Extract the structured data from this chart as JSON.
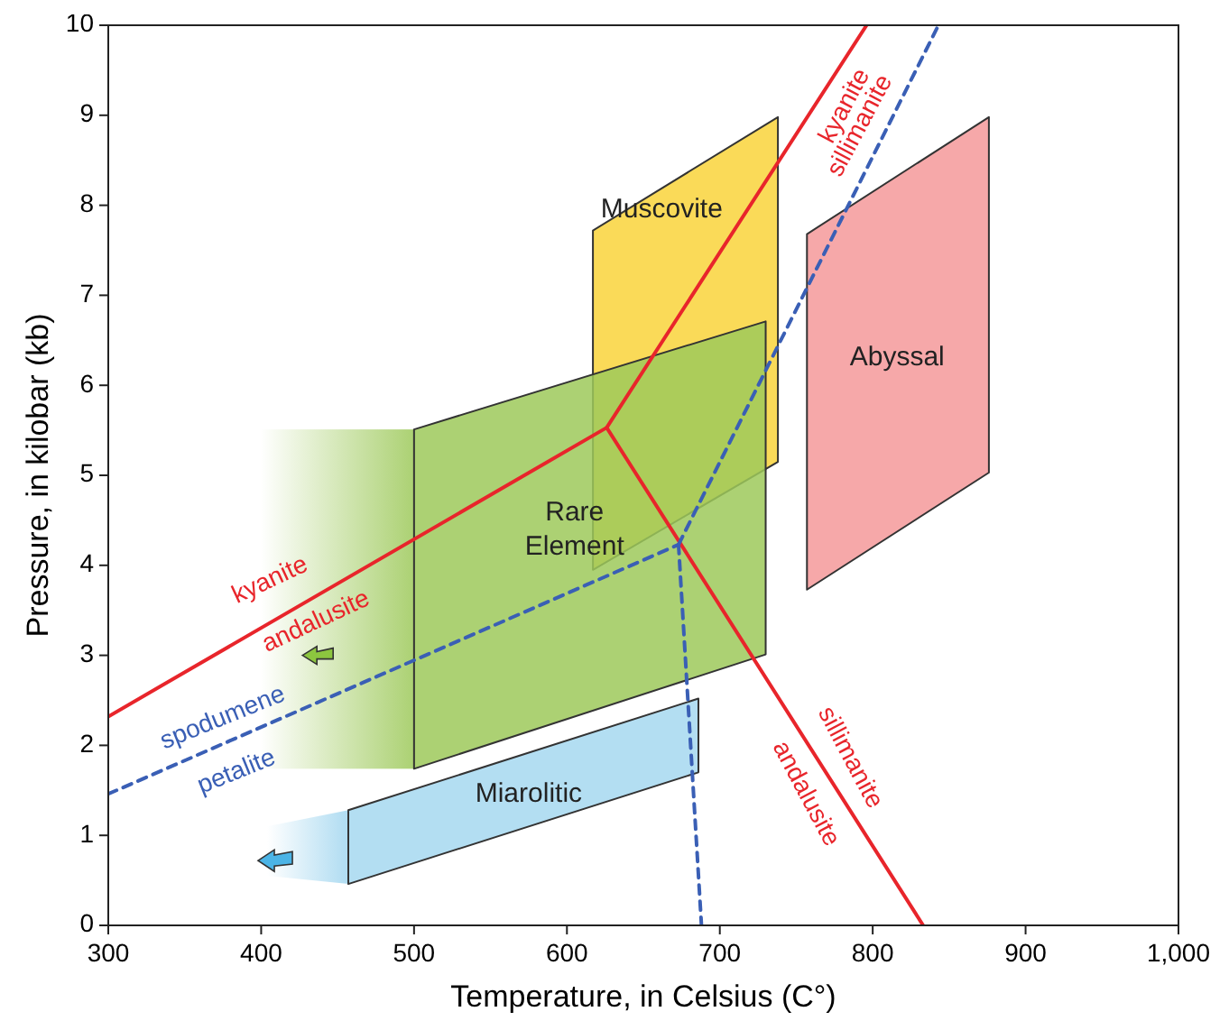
{
  "chart_data": {
    "type": "line",
    "xlabel": "Temperature, in Celsius (C°)",
    "ylabel": "Pressure, in kilobar (kb)",
    "xlim": [
      300,
      1000
    ],
    "ylim": [
      0,
      10
    ],
    "xticks": [
      300,
      400,
      500,
      600,
      700,
      800,
      900,
      {
        "value": 1000,
        "label": "1,000"
      }
    ],
    "yticks": [
      0,
      1,
      2,
      3,
      4,
      5,
      6,
      7,
      8,
      9,
      10
    ],
    "grid": false,
    "legend": false,
    "series": [
      {
        "name": "Muscovite",
        "type": "area",
        "color": "#f9d33b",
        "x": [
          617,
          738,
          738,
          617,
          617
        ],
        "values": [
          7.72,
          8.98,
          5.15,
          3.95,
          7.72
        ]
      },
      {
        "name": "Abyssal",
        "type": "area",
        "color": "#f4999a",
        "x": [
          757,
          876,
          876,
          757,
          757
        ],
        "values": [
          7.68,
          8.98,
          5.03,
          3.73,
          7.68
        ]
      },
      {
        "name": "Rare Element",
        "type": "area",
        "color": "#9dc95a",
        "x": [
          500,
          730,
          730,
          500,
          500
        ],
        "values": [
          5.51,
          6.71,
          3.01,
          1.74,
          5.51
        ]
      },
      {
        "name": "Miarolitic",
        "type": "area",
        "color": "#a6d8f0",
        "x": [
          457,
          686,
          686,
          457,
          457
        ],
        "values": [
          1.28,
          2.52,
          1.7,
          0.46,
          1.28
        ]
      },
      {
        "color": "#e8252b",
        "line_style": "solid",
        "x": [
          300,
          626
        ],
        "values": [
          2.32,
          5.53
        ]
      },
      {
        "color": "#e8252b",
        "line_style": "solid",
        "x": [
          626,
          796
        ],
        "values": [
          5.53,
          10
        ]
      },
      {
        "color": "#e8252b",
        "line_style": "solid",
        "x": [
          626,
          833
        ],
        "values": [
          5.53,
          0
        ]
      },
      {
        "color": "#3a5fb5",
        "line_style": "dashed",
        "x": [
          300,
          673
        ],
        "values": [
          1.46,
          4.23
        ]
      },
      {
        "color": "#3a5fb5",
        "line_style": "dashed",
        "x": [
          673,
          843
        ],
        "values": [
          4.23,
          10
        ]
      },
      {
        "color": "#3a5fb5",
        "line_style": "dashed",
        "x": [
          673,
          688
        ],
        "values": [
          4.23,
          0
        ]
      }
    ],
    "annotations": [
      "kyanite",
      "andalusite",
      "spodumene",
      "petalite",
      "kyanite",
      "sillimanite",
      "sillimanite",
      "andalusite"
    ]
  }
}
